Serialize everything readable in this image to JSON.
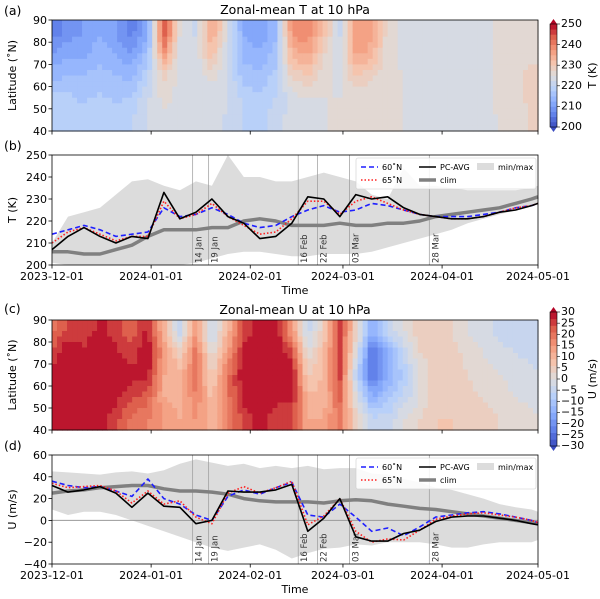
{
  "colors": {
    "lat60": "#1f1fff",
    "lat65": "#ff2020",
    "pcavg": "#000000",
    "clim": "#808080",
    "minmax": "#dcdcdc",
    "event_line": "#999999"
  },
  "dates": [
    "2023-12-01",
    "2023-12-06",
    "2023-12-11",
    "2023-12-16",
    "2023-12-21",
    "2023-12-26",
    "2023-12-31",
    "2024-01-05",
    "2024-01-10",
    "2024-01-15",
    "2024-01-20",
    "2024-01-25",
    "2024-01-30",
    "2024-02-04",
    "2024-02-09",
    "2024-02-14",
    "2024-02-19",
    "2024-02-24",
    "2024-02-29",
    "2024-03-05",
    "2024-03-10",
    "2024-03-15",
    "2024-03-20",
    "2024-03-25",
    "2024-03-30",
    "2024-04-04",
    "2024-04-09",
    "2024-04-14",
    "2024-04-19",
    "2024-04-24",
    "2024-04-29",
    "2024-05-01"
  ],
  "xaxis": {
    "range": [
      "2023-12-01",
      "2024-05-01"
    ],
    "ticks": [
      "2023-12-01",
      "2024-01-01",
      "2024-02-01",
      "2024-03-01",
      "2024-04-01",
      "2024-05-01"
    ],
    "label": "Time"
  },
  "events": [
    {
      "date": "2024-01-14",
      "label": "14 Jan"
    },
    {
      "date": "2024-01-19",
      "label": "19 Jan"
    },
    {
      "date": "2024-02-16",
      "label": "16 Feb"
    },
    {
      "date": "2024-02-22",
      "label": "22 Feb"
    },
    {
      "date": "2024-03-03",
      "label": "03 Mar"
    },
    {
      "date": "2024-03-28",
      "label": "28 Mar"
    }
  ],
  "legend": {
    "lat60": "60˚N",
    "lat65": "65˚N",
    "pcavg": "PC-AVG",
    "clim": "clim",
    "minmax": "min/max"
  },
  "chart_data": [
    {
      "panel": "(a)",
      "type": "heatmap",
      "title": "Zonal-mean T at 10 hPa",
      "ylabel": "Latitude (˚N)",
      "ylim": [
        40,
        90
      ],
      "yticks": [
        40,
        50,
        60,
        70,
        80,
        90
      ],
      "colorbar": {
        "label": "T (K)",
        "range": [
          200,
          250
        ],
        "ticks": [
          200,
          210,
          220,
          230,
          240,
          250
        ],
        "colormap": "coolwarm"
      },
      "lats": [
        85,
        75,
        65,
        55,
        45
      ],
      "values": [
        [
          206,
          208,
          210,
          212,
          210,
          206,
          212,
          246,
          225,
          222,
          236,
          224,
          212,
          210,
          214,
          238,
          240,
          232,
          222,
          238,
          236,
          226,
          224,
          224,
          224,
          224,
          224,
          224,
          226,
          227,
          227,
          227
        ],
        [
          210,
          212,
          212,
          214,
          212,
          210,
          216,
          238,
          224,
          223,
          232,
          222,
          214,
          213,
          216,
          234,
          236,
          228,
          223,
          236,
          234,
          226,
          224,
          224,
          224,
          224,
          224,
          224,
          226,
          227,
          227,
          227
        ],
        [
          214,
          215,
          215,
          216,
          215,
          214,
          220,
          228,
          224,
          223,
          226,
          222,
          216,
          216,
          218,
          228,
          230,
          226,
          224,
          230,
          228,
          226,
          225,
          224,
          224,
          224,
          224,
          224,
          226,
          227,
          228,
          228
        ],
        [
          218,
          218,
          217,
          218,
          217,
          218,
          222,
          226,
          224,
          223,
          224,
          223,
          219,
          218,
          220,
          224,
          225,
          225,
          225,
          226,
          226,
          226,
          225,
          224,
          224,
          224,
          224,
          224,
          226,
          227,
          228,
          229
        ],
        [
          220,
          219,
          219,
          219,
          219,
          220,
          223,
          224,
          224,
          224,
          223,
          222,
          220,
          219,
          222,
          223,
          224,
          225,
          225,
          226,
          225,
          226,
          225,
          224,
          224,
          224,
          224,
          224,
          225,
          226,
          228,
          230
        ]
      ]
    },
    {
      "panel": "(b)",
      "type": "line",
      "ylabel": "T (K)",
      "ylim": [
        200,
        250
      ],
      "yticks": [
        200,
        210,
        220,
        230,
        240,
        250
      ],
      "legend_position": "upper-right",
      "series": [
        {
          "name": "60˚N",
          "key": "lat60",
          "values": [
            214,
            216,
            218,
            216,
            213,
            214,
            215,
            226,
            222,
            223,
            226,
            223,
            219,
            217,
            218,
            222,
            225,
            227,
            224,
            225,
            228,
            227,
            225,
            223,
            222,
            222,
            222,
            223,
            224,
            226,
            227,
            228
          ]
        },
        {
          "name": "65˚N",
          "key": "lat65",
          "values": [
            210,
            215,
            217,
            214,
            211,
            213,
            213,
            229,
            221,
            223,
            228,
            222,
            218,
            214,
            215,
            221,
            229,
            229,
            223,
            229,
            231,
            228,
            225,
            223,
            222,
            221,
            221,
            222,
            224,
            226,
            227,
            228
          ]
        },
        {
          "name": "PC-AVG",
          "key": "pcavg",
          "values": [
            207,
            213,
            217,
            213,
            210,
            213,
            212,
            233,
            221,
            224,
            230,
            222,
            219,
            212,
            213,
            219,
            231,
            230,
            222,
            232,
            230,
            231,
            226,
            223,
            222,
            221,
            221,
            222,
            224,
            225,
            227,
            228
          ]
        },
        {
          "name": "clim",
          "key": "clim",
          "values": [
            206,
            206,
            205,
            205,
            207,
            209,
            213,
            216,
            216,
            216,
            217,
            217,
            220,
            221,
            220,
            218,
            218,
            218,
            219,
            218,
            218,
            219,
            219,
            220,
            222,
            223,
            224,
            225,
            226,
            228,
            230,
            231
          ]
        }
      ],
      "band": {
        "name": "min/max",
        "max": [
          210,
          222,
          224,
          226,
          232,
          238,
          239,
          236,
          234,
          238,
          236,
          250,
          240,
          240,
          238,
          238,
          240,
          242,
          240,
          238,
          232,
          230,
          244,
          236,
          236,
          235,
          234,
          234,
          234,
          234,
          235,
          236
        ],
        "min": [
          201,
          200,
          200,
          200,
          200,
          200,
          200,
          200,
          200,
          201,
          203,
          205,
          206,
          206,
          205,
          204,
          204,
          205,
          205,
          205,
          206,
          208,
          210,
          212,
          214,
          216,
          219,
          221,
          223,
          225,
          227,
          228
        ]
      }
    },
    {
      "panel": "(c)",
      "type": "heatmap",
      "title": "Zonal-mean U at 10 hPa",
      "ylabel": "Latitude (˚N)",
      "ylim": [
        40,
        90
      ],
      "yticks": [
        40,
        50,
        60,
        70,
        80,
        90
      ],
      "colorbar": {
        "label": "U (m/s)",
        "range": [
          -30,
          30
        ],
        "ticks": [
          -30,
          -25,
          -20,
          -15,
          -10,
          -5,
          0,
          5,
          10,
          15,
          20,
          25,
          30
        ],
        "colormap": "coolwarm"
      },
      "lats": [
        85,
        75,
        65,
        55,
        45
      ],
      "values": [
        [
          20,
          25,
          25,
          28,
          25,
          22,
          28,
          10,
          -5,
          15,
          -5,
          10,
          25,
          28,
          30,
          15,
          -5,
          5,
          25,
          5,
          -15,
          -5,
          0,
          5,
          5,
          3,
          0,
          -2,
          -4,
          -5,
          -5,
          -5
        ],
        [
          25,
          30,
          28,
          30,
          28,
          25,
          30,
          15,
          5,
          20,
          0,
          15,
          28,
          30,
          30,
          25,
          0,
          10,
          25,
          0,
          -25,
          -15,
          -5,
          3,
          5,
          4,
          2,
          0,
          -2,
          -3,
          -4,
          -4
        ],
        [
          28,
          32,
          30,
          32,
          30,
          28,
          28,
          12,
          10,
          20,
          5,
          20,
          30,
          32,
          30,
          30,
          5,
          10,
          25,
          -5,
          -25,
          -15,
          -8,
          0,
          5,
          5,
          3,
          1,
          0,
          -1,
          -2,
          -3
        ],
        [
          30,
          30,
          32,
          30,
          28,
          25,
          22,
          12,
          10,
          18,
          8,
          20,
          28,
          30,
          28,
          28,
          10,
          10,
          22,
          0,
          -15,
          -10,
          -5,
          0,
          5,
          6,
          4,
          3,
          1,
          0,
          -1,
          -2
        ],
        [
          30,
          28,
          30,
          28,
          25,
          20,
          18,
          15,
          12,
          15,
          10,
          18,
          25,
          28,
          25,
          25,
          12,
          12,
          20,
          5,
          -5,
          -5,
          0,
          3,
          6,
          6,
          5,
          4,
          3,
          2,
          1,
          0
        ]
      ]
    },
    {
      "panel": "(d)",
      "type": "line",
      "ylabel": "U (m/s)",
      "ylim": [
        -40,
        60
      ],
      "yticks": [
        -40,
        -20,
        0,
        20,
        40,
        60
      ],
      "legend_position": "upper-right",
      "zero_line": true,
      "series": [
        {
          "name": "60˚N",
          "key": "lat60",
          "values": [
            36,
            32,
            30,
            31,
            27,
            22,
            38,
            20,
            15,
            5,
            0,
            22,
            28,
            24,
            30,
            35,
            5,
            3,
            15,
            3,
            -10,
            -7,
            -14,
            -6,
            3,
            5,
            7,
            8,
            6,
            3,
            0,
            -2
          ]
        },
        {
          "name": "65˚N",
          "key": "lat65",
          "values": [
            34,
            30,
            31,
            32,
            27,
            16,
            27,
            15,
            18,
            3,
            -3,
            25,
            31,
            25,
            30,
            36,
            -4,
            4,
            20,
            -10,
            -20,
            -17,
            -18,
            -9,
            1,
            4,
            6,
            7,
            5,
            3,
            0,
            -2
          ]
        },
        {
          "name": "PC-AVG",
          "key": "pcavg",
          "values": [
            32,
            26,
            28,
            31,
            25,
            12,
            25,
            13,
            12,
            -3,
            0,
            27,
            26,
            26,
            28,
            33,
            -10,
            2,
            20,
            -15,
            -19,
            -19,
            -12,
            -9,
            -1,
            3,
            4,
            4,
            2,
            0,
            -3,
            -4
          ]
        },
        {
          "name": "clim",
          "key": "clim",
          "values": [
            25,
            27,
            28,
            30,
            31,
            32,
            32,
            29,
            27,
            27,
            26,
            24,
            20,
            18,
            17,
            17,
            17,
            16,
            18,
            19,
            18,
            15,
            13,
            11,
            10,
            8,
            6,
            4,
            2,
            0,
            -2,
            -3
          ]
        }
      ],
      "band": {
        "name": "min/max",
        "max": [
          45,
          44,
          43,
          42,
          44,
          45,
          43,
          46,
          52,
          56,
          53,
          50,
          52,
          48,
          50,
          48,
          50,
          47,
          48,
          48,
          43,
          42,
          38,
          35,
          30,
          28,
          24,
          20,
          15,
          12,
          10,
          8
        ],
        "min": [
          10,
          5,
          8,
          8,
          5,
          0,
          -5,
          -10,
          -15,
          -20,
          -25,
          -28,
          -25,
          -22,
          -27,
          -35,
          -30,
          -26,
          -25,
          -22,
          -23,
          -20,
          -20,
          -20,
          -22,
          -25,
          -25,
          -22,
          -20,
          -20,
          -20,
          -18
        ]
      }
    }
  ]
}
